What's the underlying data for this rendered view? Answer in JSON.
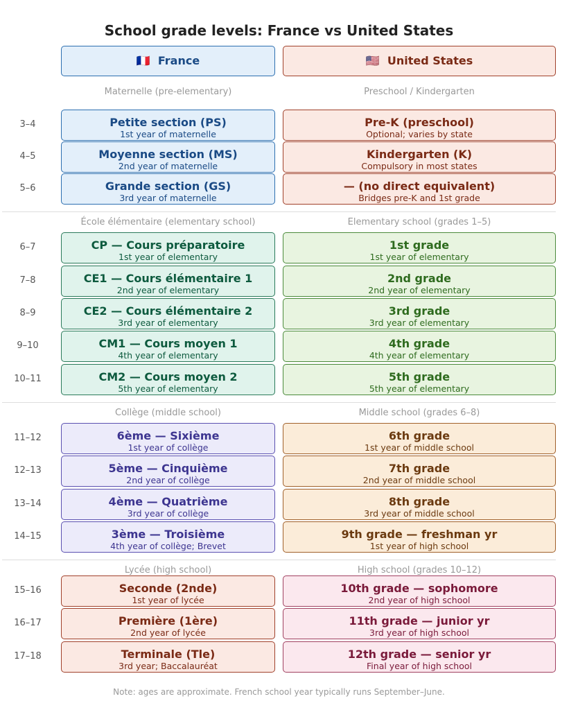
{
  "title": "School grade levels: France vs United States",
  "headers": {
    "france": {
      "flag": "🇫🇷",
      "label": "France"
    },
    "us": {
      "flag": "🇺🇸",
      "label": "United States"
    }
  },
  "sections": [
    {
      "fr_label": "Maternelle (pre-elementary)",
      "us_label": "Preschool / Kindergarten",
      "rows": [
        {
          "age": "3–4",
          "fr": {
            "title": "Petite section (PS)",
            "sub": "1st year of maternelle"
          },
          "us": {
            "title": "Pre-K (preschool)",
            "sub": "Optional; varies by state"
          }
        },
        {
          "age": "4–5",
          "fr": {
            "title": "Moyenne section (MS)",
            "sub": "2nd year of maternelle"
          },
          "us": {
            "title": "Kindergarten (K)",
            "sub": "Compulsory in most states"
          }
        },
        {
          "age": "5–6",
          "fr": {
            "title": "Grande section (GS)",
            "sub": "3rd year of maternelle"
          },
          "us": {
            "title": "— (no direct equivalent)",
            "sub": "Bridges pre-K and 1st grade"
          }
        }
      ]
    },
    {
      "fr_label": "École élémentaire (elementary school)",
      "us_label": "Elementary school (grades 1–5)",
      "rows": [
        {
          "age": "6–7",
          "fr": {
            "title": "CP — Cours préparatoire",
            "sub": "1st year of elementary"
          },
          "us": {
            "title": "1st grade",
            "sub": "1st year of elementary"
          }
        },
        {
          "age": "7–8",
          "fr": {
            "title": "CE1 — Cours élémentaire 1",
            "sub": "2nd year of elementary"
          },
          "us": {
            "title": "2nd grade",
            "sub": "2nd year of elementary"
          }
        },
        {
          "age": "8–9",
          "fr": {
            "title": "CE2 — Cours élémentaire 2",
            "sub": "3rd year of elementary"
          },
          "us": {
            "title": "3rd grade",
            "sub": "3rd year of elementary"
          }
        },
        {
          "age": "9–10",
          "fr": {
            "title": "CM1 — Cours moyen 1",
            "sub": "4th year of elementary"
          },
          "us": {
            "title": "4th grade",
            "sub": "4th year of elementary"
          }
        },
        {
          "age": "10–11",
          "fr": {
            "title": "CM2 — Cours moyen 2",
            "sub": "5th year of elementary"
          },
          "us": {
            "title": "5th grade",
            "sub": "5th year of elementary"
          }
        }
      ]
    },
    {
      "fr_label": "Collège (middle school)",
      "us_label": "Middle school (grades 6–8)",
      "rows": [
        {
          "age": "11–12",
          "fr": {
            "title": "6ème — Sixième",
            "sub": "1st year of collège"
          },
          "us": {
            "title": "6th grade",
            "sub": "1st year of middle school"
          }
        },
        {
          "age": "12–13",
          "fr": {
            "title": "5ème — Cinquième",
            "sub": "2nd year of collège"
          },
          "us": {
            "title": "7th grade",
            "sub": "2nd year of middle school"
          }
        },
        {
          "age": "13–14",
          "fr": {
            "title": "4ème — Quatrième",
            "sub": "3rd year of collège"
          },
          "us": {
            "title": "8th grade",
            "sub": "3rd year of middle school"
          }
        },
        {
          "age": "14–15",
          "fr": {
            "title": "3ème — Troisième",
            "sub": "4th year of collège; Brevet"
          },
          "us": {
            "title": "9th grade — freshman yr",
            "sub": "1st year of high school"
          }
        }
      ]
    },
    {
      "fr_label": "Lycée (high school)",
      "us_label": "High school (grades 10–12)",
      "rows": [
        {
          "age": "15–16",
          "fr": {
            "title": "Seconde (2nde)",
            "sub": "1st year of lycée"
          },
          "us": {
            "title": "10th grade — sophomore",
            "sub": "2nd year of high school"
          }
        },
        {
          "age": "16–17",
          "fr": {
            "title": "Première (1ère)",
            "sub": "2nd year of lycée"
          },
          "us": {
            "title": "11th grade — junior yr",
            "sub": "3rd year of high school"
          }
        },
        {
          "age": "17–18",
          "fr": {
            "title": "Terminale (Tle)",
            "sub": "3rd year; Baccalauréat"
          },
          "us": {
            "title": "12th grade — senior yr",
            "sub": "Final year of high school"
          }
        }
      ]
    }
  ],
  "note": "Note: ages are approximate. French school year typically runs September–June."
}
